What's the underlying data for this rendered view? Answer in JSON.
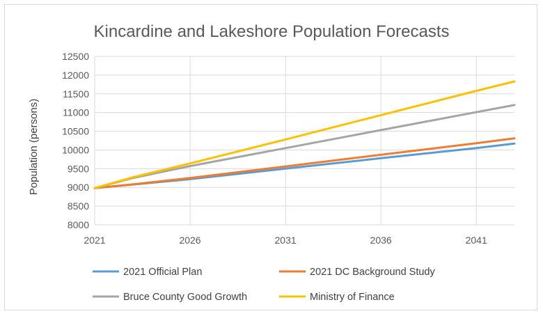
{
  "chart_data": {
    "type": "line",
    "title": "Kincardine and Lakeshore Population Forecasts",
    "ylabel": "Population (persons)",
    "xlabel": "",
    "xlim": [
      2021,
      2043
    ],
    "ylim": [
      8000,
      12500
    ],
    "x_ticks": [
      "2021",
      "2026",
      "2031",
      "2036",
      "2041"
    ],
    "y_ticks": [
      "8000",
      "8500",
      "9000",
      "9500",
      "10000",
      "10500",
      "11000",
      "11500",
      "12000",
      "12500"
    ],
    "grid": true,
    "legend_position": "bottom",
    "series": [
      {
        "name": "2021 Official Plan",
        "color": "#5B9BD5",
        "points": [
          [
            2021,
            8980
          ],
          [
            2026,
            9220
          ],
          [
            2031,
            9500
          ],
          [
            2036,
            9780
          ],
          [
            2041,
            10050
          ],
          [
            2043,
            10170
          ]
        ]
      },
      {
        "name": "2021 DC Background Study",
        "color": "#ED7D31",
        "points": [
          [
            2021,
            8980
          ],
          [
            2023,
            9080
          ],
          [
            2026,
            9250
          ],
          [
            2031,
            9560
          ],
          [
            2036,
            9870
          ],
          [
            2041,
            10180
          ],
          [
            2043,
            10310
          ]
        ]
      },
      {
        "name": "Bruce County Good Growth",
        "color": "#A5A5A5",
        "points": [
          [
            2021,
            8980
          ],
          [
            2023,
            9250
          ],
          [
            2026,
            9570
          ],
          [
            2031,
            10050
          ],
          [
            2036,
            10530
          ],
          [
            2041,
            11010
          ],
          [
            2043,
            11200
          ]
        ]
      },
      {
        "name": "Ministry of Finance",
        "color": "#FFC000",
        "points": [
          [
            2021,
            8980
          ],
          [
            2023,
            9270
          ],
          [
            2026,
            9640
          ],
          [
            2031,
            10280
          ],
          [
            2036,
            10930
          ],
          [
            2041,
            11580
          ],
          [
            2043,
            11830
          ]
        ]
      }
    ]
  }
}
